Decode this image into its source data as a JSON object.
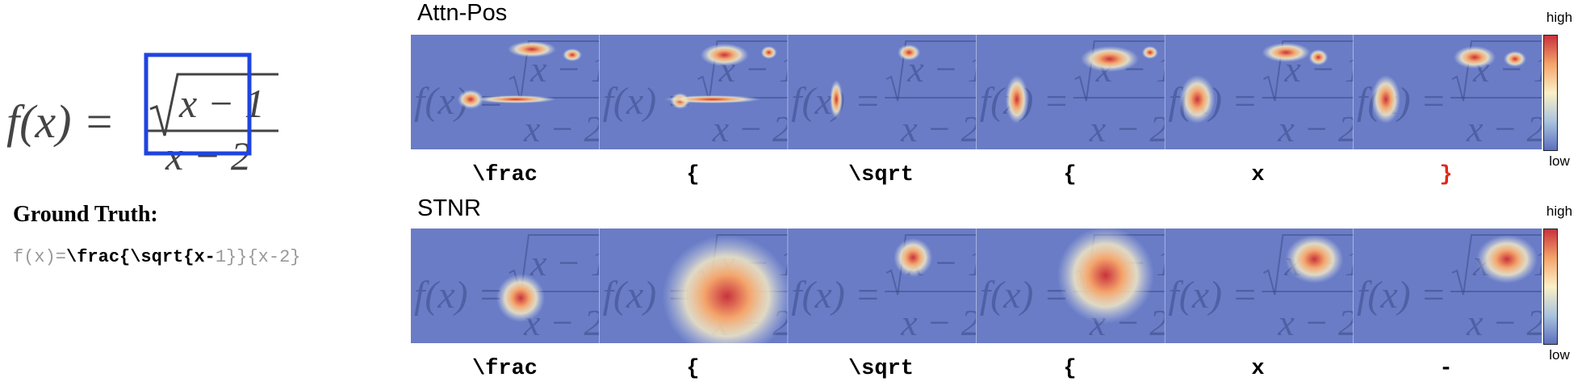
{
  "formula": {
    "fx": "f(x) =",
    "numerator": "x − 1",
    "denominator": "x − 2"
  },
  "ground_truth": {
    "heading": "Ground Truth:",
    "tokens": [
      {
        "text": "f(x)=",
        "highlight": false
      },
      {
        "text": "\\frac{\\sqrt{x-",
        "highlight": true
      },
      {
        "text": "1}}{x-2}",
        "highlight": false
      }
    ]
  },
  "rows": [
    {
      "title": "Attn-Pos",
      "tokens": [
        {
          "text": "\\frac",
          "error": false
        },
        {
          "text": "{",
          "error": false
        },
        {
          "text": "\\sqrt",
          "error": false
        },
        {
          "text": "{",
          "error": false
        },
        {
          "text": "x",
          "error": false
        },
        {
          "text": "}",
          "error": true
        }
      ]
    },
    {
      "title": "STNR",
      "tokens": [
        {
          "text": "\\frac",
          "error": false
        },
        {
          "text": "{",
          "error": false
        },
        {
          "text": "\\sqrt",
          "error": false
        },
        {
          "text": "{",
          "error": false
        },
        {
          "text": "x",
          "error": false
        },
        {
          "text": "-",
          "error": false
        }
      ]
    }
  ],
  "colorbar": {
    "high": "high",
    "low": "low"
  },
  "colors": {
    "map_bg": "#6a7cc6",
    "box": "#1f44e0",
    "error": "#e0281e",
    "hot": "#c8323c"
  }
}
